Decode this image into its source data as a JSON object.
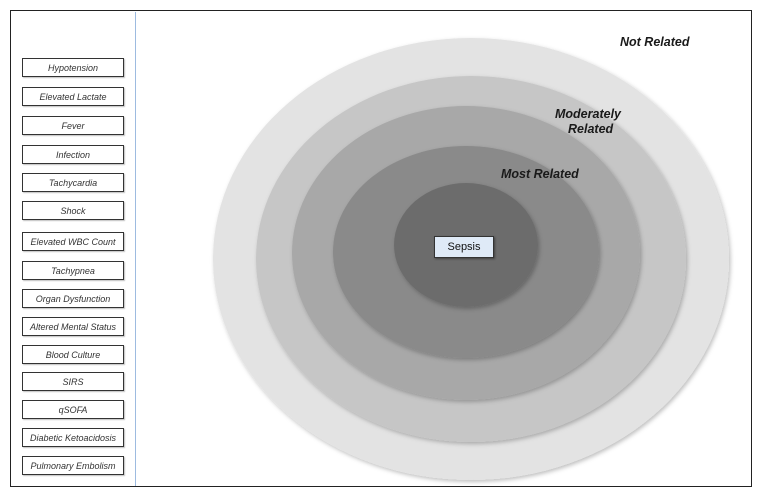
{
  "terms": [
    "Hypotension",
    "Elevated Lactate",
    "Fever",
    "Infection",
    "Tachycardia",
    "Shock",
    "Elevated WBC Count",
    "Tachypnea",
    "Organ Dysfunction",
    "Altered Mental Status",
    "Blood Culture",
    "SIRS",
    "qSOFA",
    "Diabetic Ketoacidosis",
    "Pulmonary Embolism"
  ],
  "rings": {
    "not_related": "Not Related",
    "moderately_related_line1": "Moderately",
    "moderately_related_line2": "Related",
    "most_related": "Most Related"
  },
  "center": {
    "label": "Sepsis"
  },
  "colors": {
    "ring_outer": "#e3e3e3",
    "ring_2": "#c6c6c6",
    "ring_3": "#a8a8a8",
    "ring_4": "#8a8a8a",
    "ring_core": "#6c6c6c",
    "center_box": "#dfeaf7"
  }
}
